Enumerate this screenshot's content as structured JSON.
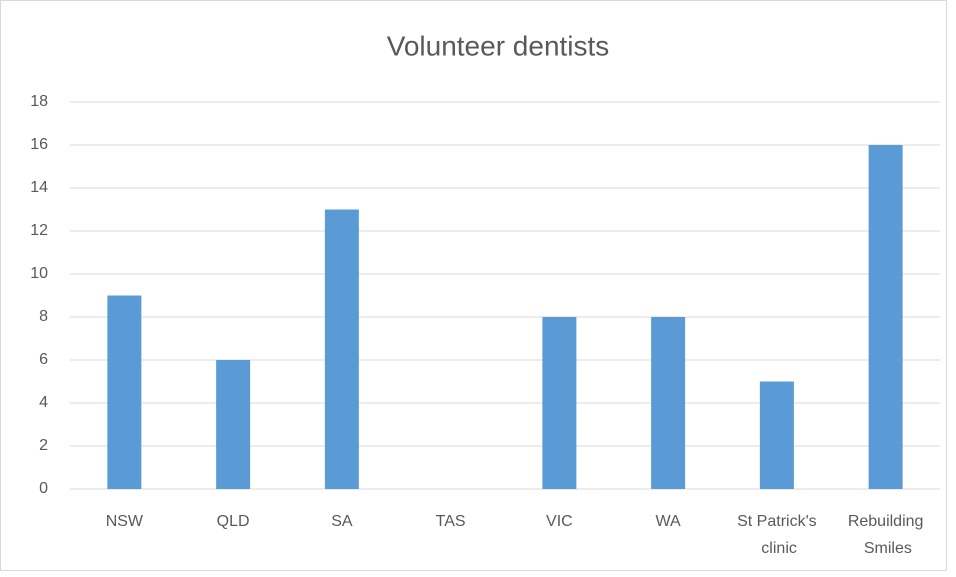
{
  "chart_data": {
    "type": "bar",
    "title": "Volunteer dentists",
    "categories": [
      "NSW",
      "QLD",
      "SA",
      "TAS",
      "VIC",
      "WA",
      "St Patrick's clinic",
      "Rebuilding Smiles"
    ],
    "values": [
      9,
      6,
      13,
      0,
      8,
      8,
      5,
      16
    ],
    "color": "#5b9bd5",
    "ylim": [
      0,
      18
    ],
    "yticks": [
      0,
      2,
      4,
      6,
      8,
      10,
      12,
      14,
      16,
      18
    ],
    "grid": true
  }
}
